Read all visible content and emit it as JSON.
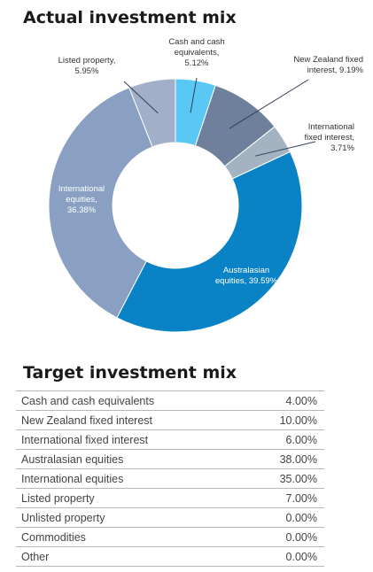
{
  "actual": {
    "heading": "Actual investment mix"
  },
  "target": {
    "heading": "Target investment mix",
    "rows": [
      {
        "label": "Cash and cash equivalents",
        "value": "4.00%"
      },
      {
        "label": "New Zealand fixed interest",
        "value": "10.00%"
      },
      {
        "label": "International fixed interest",
        "value": "6.00%"
      },
      {
        "label": "Australasian equities",
        "value": "38.00%"
      },
      {
        "label": "International equities",
        "value": "35.00%"
      },
      {
        "label": "Listed property",
        "value": "7.00%"
      },
      {
        "label": "Unlisted property",
        "value": "0.00%"
      },
      {
        "label": "Commodities",
        "value": "0.00%"
      },
      {
        "label": "Other",
        "value": "0.00%"
      }
    ]
  },
  "chart_data": {
    "type": "pie",
    "variant": "donut",
    "title": "Actual investment mix",
    "start": "12 o'clock",
    "direction": "clockwise",
    "slices": [
      {
        "name": "Cash and cash equivalents",
        "value": 5.12,
        "label": [
          "Cash and cash",
          "equivalents,",
          "5.12%"
        ],
        "color": "#59c8f5"
      },
      {
        "name": "New Zealand fixed interest",
        "value": 9.19,
        "label": [
          "New Zealand fixed",
          "interest, 9.19%"
        ],
        "color": "#6f809c"
      },
      {
        "name": "International fixed interest",
        "value": 3.71,
        "label": [
          "International",
          "fixed interest,",
          "3.71%"
        ],
        "color": "#a3b3c2"
      },
      {
        "name": "Australasian equities",
        "value": 39.59,
        "label": [
          "Australasian",
          "equities, 39.59%"
        ],
        "color": "#0a83c6"
      },
      {
        "name": "International equities",
        "value": 36.38,
        "label": [
          "International",
          "equities,",
          "36.38%"
        ],
        "color": "#8aa0c3"
      },
      {
        "name": "Listed property",
        "value": 5.95,
        "label": [
          "Listed property,",
          "5.95%"
        ],
        "color": "#a1b0c8"
      }
    ]
  }
}
